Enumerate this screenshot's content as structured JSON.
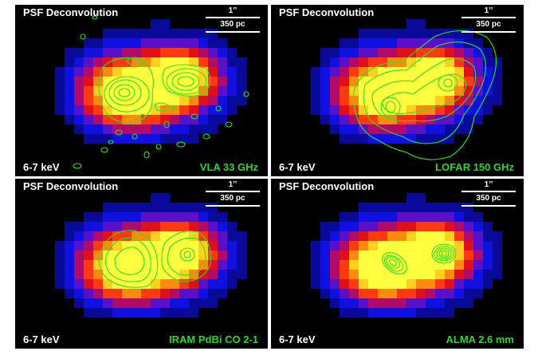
{
  "colors": {
    "contour": "#22e822",
    "label_green": "#22dd22",
    "text": "#ffffff",
    "background": "#000000"
  },
  "panels": [
    {
      "title": "PSF Deconvolution",
      "scale_arcsec": "1’’",
      "scale_pc": "350 pc",
      "band": "6-7 keV",
      "observation": "VLA 33 GHz"
    },
    {
      "title": "PSF Deconvolution",
      "scale_arcsec": "1’’",
      "scale_pc": "350 pc",
      "band": "6-7 keV",
      "observation": "LOFAR 150 GHz"
    },
    {
      "title": "PSF Deconvolution",
      "scale_arcsec": "1’’",
      "scale_pc": "350 pc",
      "band": "6-7 keV",
      "observation": "IRAM PdBi CO 2-1"
    },
    {
      "title": "PSF Deconvolution",
      "scale_arcsec": "1’’",
      "scale_pc": "350 pc",
      "band": "6-7 keV",
      "observation": "ALMA 2.6 mm"
    }
  ]
}
